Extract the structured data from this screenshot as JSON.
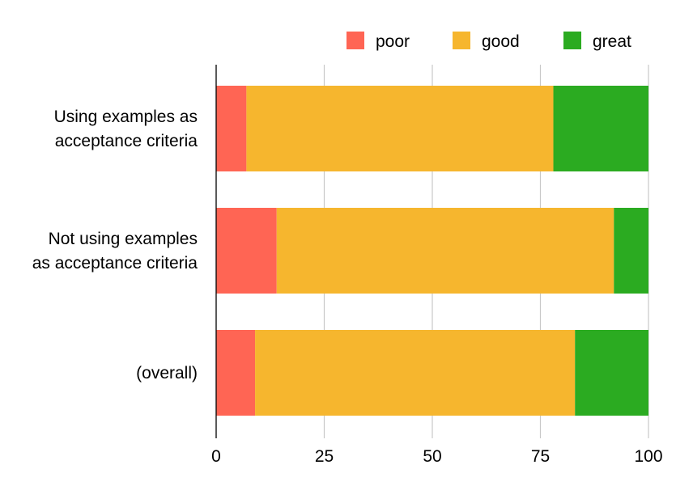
{
  "chart_data": {
    "type": "bar",
    "orientation": "horizontal",
    "stacked": true,
    "categories": [
      [
        "Using examples as",
        "acceptance criteria"
      ],
      [
        "Not using examples",
        "as acceptance criteria"
      ],
      [
        "(overall)"
      ]
    ],
    "series": [
      {
        "name": "poor",
        "color": "#FF6554",
        "values": [
          7,
          14,
          9
        ]
      },
      {
        "name": "good",
        "color": "#F6B62E",
        "values": [
          71,
          78,
          74
        ]
      },
      {
        "name": "great",
        "color": "#2BAB21",
        "values": [
          22,
          8,
          17
        ]
      }
    ],
    "xlim": [
      0,
      100
    ],
    "xticks": [
      "0",
      "25",
      "50",
      "75",
      "100"
    ],
    "grid": true,
    "legend": "top-right"
  }
}
